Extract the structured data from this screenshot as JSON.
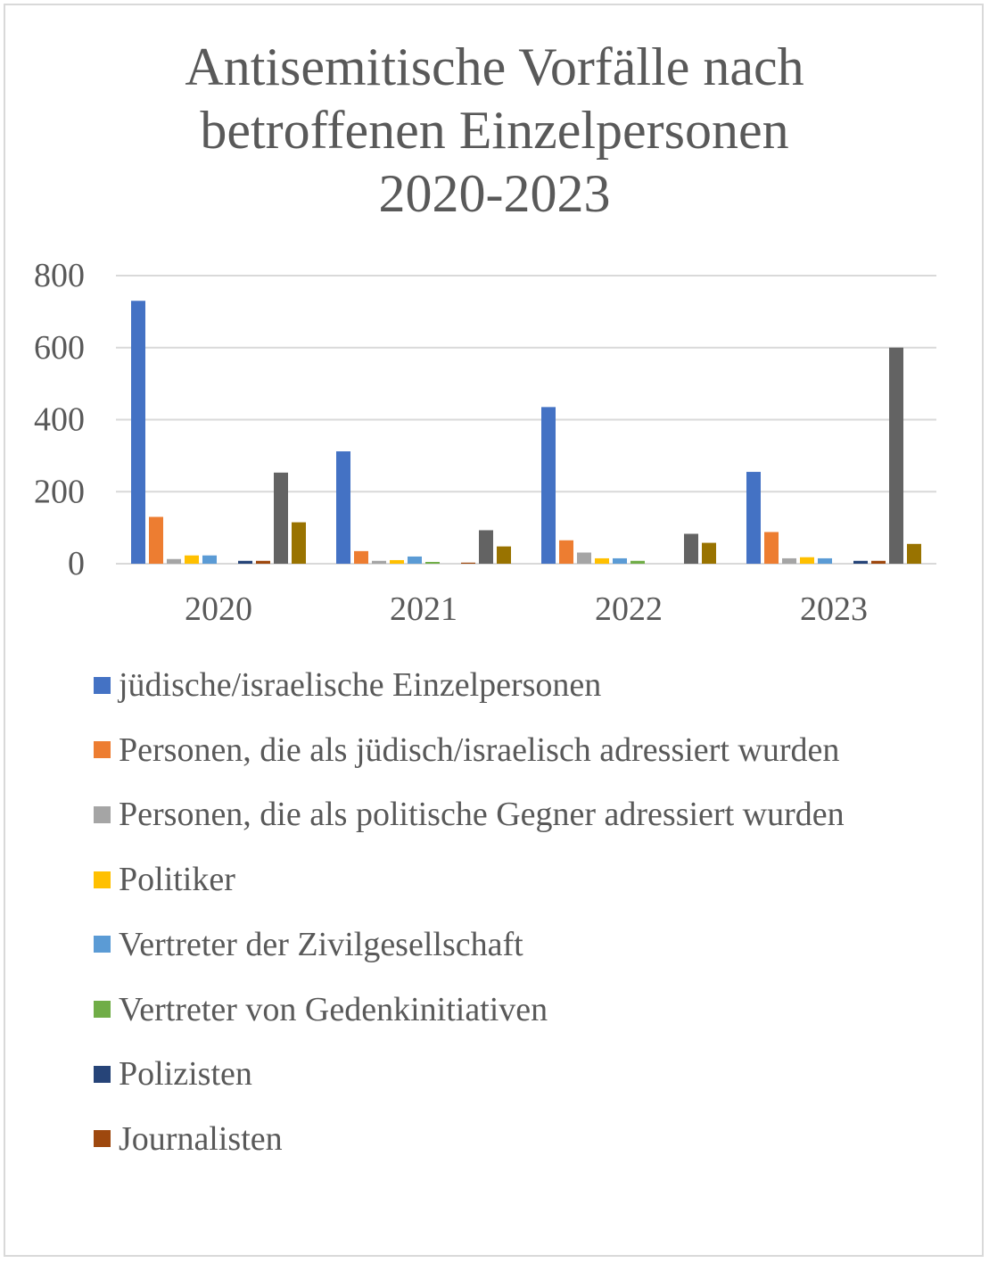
{
  "chart_data": {
    "type": "bar",
    "title": [
      "Antisemitische Vorfälle nach",
      "betroffenen Einzelpersonen",
      "2020-2023"
    ],
    "categories": [
      "2020",
      "2021",
      "2022",
      "2023"
    ],
    "ylim": [
      0,
      800
    ],
    "yticks": [
      "0",
      "200",
      "400",
      "600",
      "800"
    ],
    "grid": true,
    "legend_position": "bottom",
    "series": [
      {
        "name": "jüdische/israelische Einzelpersonen",
        "color": "#4472c4",
        "values": [
          730,
          312,
          435,
          255
        ]
      },
      {
        "name": "Personen, die als jüdisch/israelisch adressiert wurden",
        "color": "#ed7d31",
        "values": [
          130,
          35,
          65,
          88
        ]
      },
      {
        "name": "Personen, die als politische Gegner adressiert wurden",
        "color": "#a5a5a5",
        "values": [
          13,
          8,
          31,
          15
        ]
      },
      {
        "name": "Politiker",
        "color": "#ffc000",
        "values": [
          23,
          10,
          15,
          18
        ]
      },
      {
        "name": "Vertreter der Zivilgesellschaft",
        "color": "#5b9bd5",
        "values": [
          23,
          20,
          15,
          15
        ]
      },
      {
        "name": "Vertreter von Gedenkinitiativen",
        "color": "#70ad47",
        "values": [
          0,
          5,
          8,
          0
        ]
      },
      {
        "name": "Polizisten",
        "color": "#264478",
        "values": [
          8,
          0,
          0,
          8
        ]
      },
      {
        "name": "Journalisten",
        "color": "#9e480e",
        "values": [
          8,
          3,
          0,
          8
        ]
      },
      {
        "name": null,
        "color": "#636363",
        "values": [
          253,
          93,
          83,
          600
        ]
      },
      {
        "name": null,
        "color": "#997300",
        "values": [
          115,
          48,
          58,
          55
        ]
      }
    ]
  }
}
